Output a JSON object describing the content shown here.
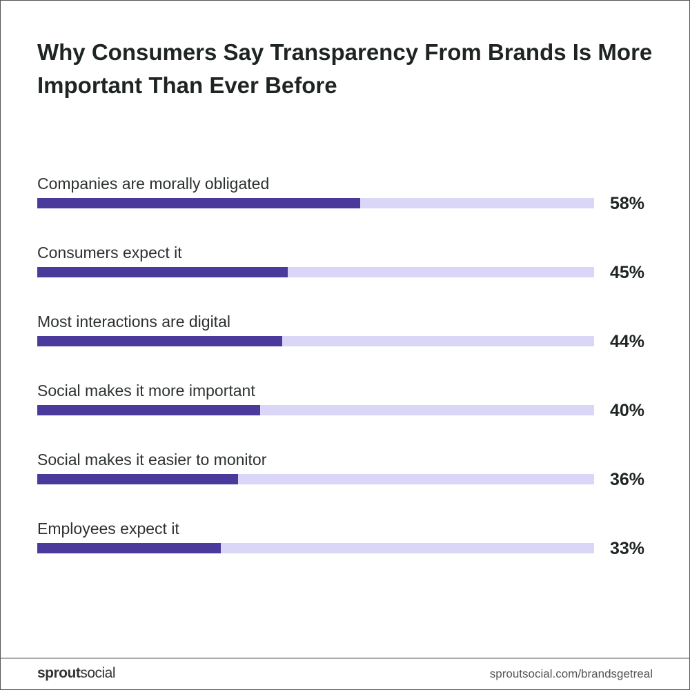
{
  "chart_data": {
    "type": "bar",
    "orientation": "horizontal",
    "title": "Why Consumers Say Transparency From Brands Is More Important Than Ever Before",
    "categories": [
      "Companies are morally obligated",
      "Consumers expect it",
      "Most interactions are digital",
      "Social makes it more important",
      "Social makes it easier to monitor",
      "Employees expect it"
    ],
    "values": [
      58,
      45,
      44,
      40,
      36,
      33
    ],
    "value_labels": [
      "58%",
      "45%",
      "44%",
      "40%",
      "36%",
      "33%"
    ],
    "xlim": [
      0,
      100
    ],
    "grid": false,
    "colors": {
      "fill": "#4b3a9b",
      "track": "#d9d6f7"
    }
  },
  "footer": {
    "logo_bold": "sprout",
    "logo_light": "social",
    "url": "sproutsocial.com/brandsgetreal"
  }
}
